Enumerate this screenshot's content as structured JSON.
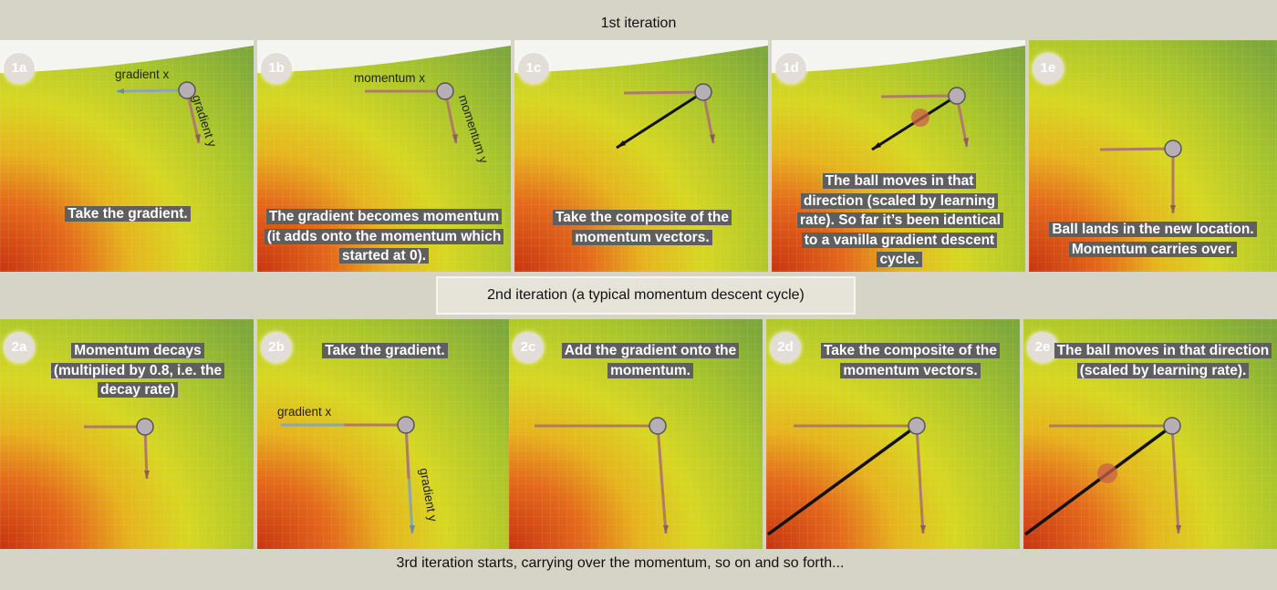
{
  "headers": {
    "iter1": "1st iteration",
    "iter2": "2nd iteration (a typical momentum descent cycle)",
    "iter3": "3rd iteration starts, carrying over the momentum, so on and so forth..."
  },
  "row1": [
    {
      "badge": "1a",
      "caption": "Take the gradient."
    },
    {
      "badge": "1b",
      "caption": "The gradient becomes momentum (it adds onto the momentum which started at 0)."
    },
    {
      "badge": "1c",
      "caption": "Take the composite of the momentum vectors."
    },
    {
      "badge": "1d",
      "caption": "The ball moves in that direction (scaled by learning rate). So far it’s been identical to a vanilla gradient descent cycle."
    },
    {
      "badge": "1e",
      "caption": "Ball lands in the new location. Momentum carries over."
    }
  ],
  "row2": [
    {
      "badge": "2a",
      "caption": "Momentum decays (multiplied by 0.8, i.e. the decay rate)"
    },
    {
      "badge": "2b",
      "caption": "Take the gradient."
    },
    {
      "badge": "2c",
      "caption": "Add the gradient onto the momentum."
    },
    {
      "badge": "2d",
      "caption": "Take the composite of the momentum vectors."
    },
    {
      "badge": "2e",
      "caption": "The ball moves in that direction (scaled by learning rate)."
    }
  ],
  "vector_labels": {
    "p1a_x": "gradient x",
    "p1a_y": "gradient y",
    "p1b_x": "momentum x",
    "p1b_y": "momentum y",
    "p2b_x": "gradient x",
    "p2b_y": "gradient y"
  },
  "colors": {
    "background": "#d6d3c7",
    "surface_green": "#8fb23a",
    "surface_yellow": "#d9d31e",
    "surface_orange": "#e06a1a",
    "caption_bg": "#5f5f5f",
    "momentum_vector": "#b07a6a",
    "gradient_vector": "#8aa7b0",
    "composite_vector": "#111111",
    "ball": "#b7aeb6"
  }
}
